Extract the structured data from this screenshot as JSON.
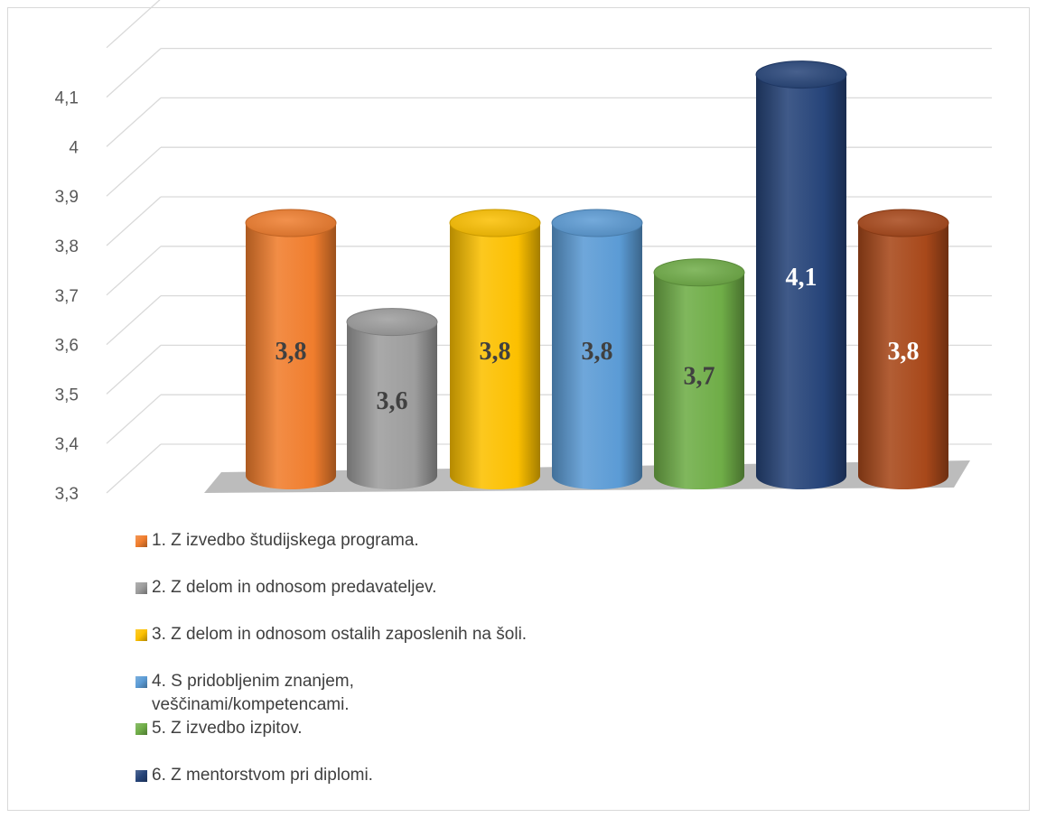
{
  "chart_data": {
    "type": "bar",
    "style": "3d-cylinder",
    "categories": [
      "1. Z izvedbo študijskega programa.",
      "2. Z delom in odnosom predavateljev.",
      "3. Z delom in odnosom ostalih zaposlenih na šoli.",
      "4. S pridobljenim znanjem, veščinami/kompetencami.",
      "5. Z izvedbo izpitov.",
      "6. Z mentorstvom pri diplomi.",
      ""
    ],
    "values": [
      3.8,
      3.6,
      3.8,
      3.8,
      3.7,
      4.1,
      3.8
    ],
    "data_labels": [
      "3,8",
      "3,6",
      "3,8",
      "3,8",
      "3,7",
      "4,1",
      "3,8"
    ],
    "colors": [
      "#f07d2d",
      "#9d9d9d",
      "#fcc000",
      "#5b9bd5",
      "#6fad47",
      "#264479",
      "#a8481a"
    ],
    "ylim": [
      3.3,
      4.2
    ],
    "yticks": [
      3.3,
      3.4,
      3.5,
      3.6,
      3.7,
      3.8,
      3.9,
      4.0,
      4.1
    ],
    "ytick_labels": [
      "3,3",
      "3,4",
      "3,5",
      "3,6",
      "3,7",
      "3,8",
      "3,9",
      "4",
      "4,1"
    ],
    "grid": true,
    "legend_position": "bottom",
    "legend": [
      {
        "label": "1. Z izvedbo študijskega programa.",
        "color": "#f07d2d"
      },
      {
        "label": "2. Z delom in odnosom predavateljev.",
        "color": "#9d9d9d"
      },
      {
        "label": "3. Z delom in odnosom ostalih zaposlenih na šoli.",
        "color": "#fcc000"
      },
      {
        "label": "4. S pridobljenim znanjem,\nveščinami/kompetencami.",
        "color": "#5b9bd5"
      },
      {
        "label": "5. Z izvedbo izpitov.",
        "color": "#6fad47"
      },
      {
        "label": "6. Z mentorstvom pri diplomi.",
        "color": "#264479"
      }
    ]
  }
}
